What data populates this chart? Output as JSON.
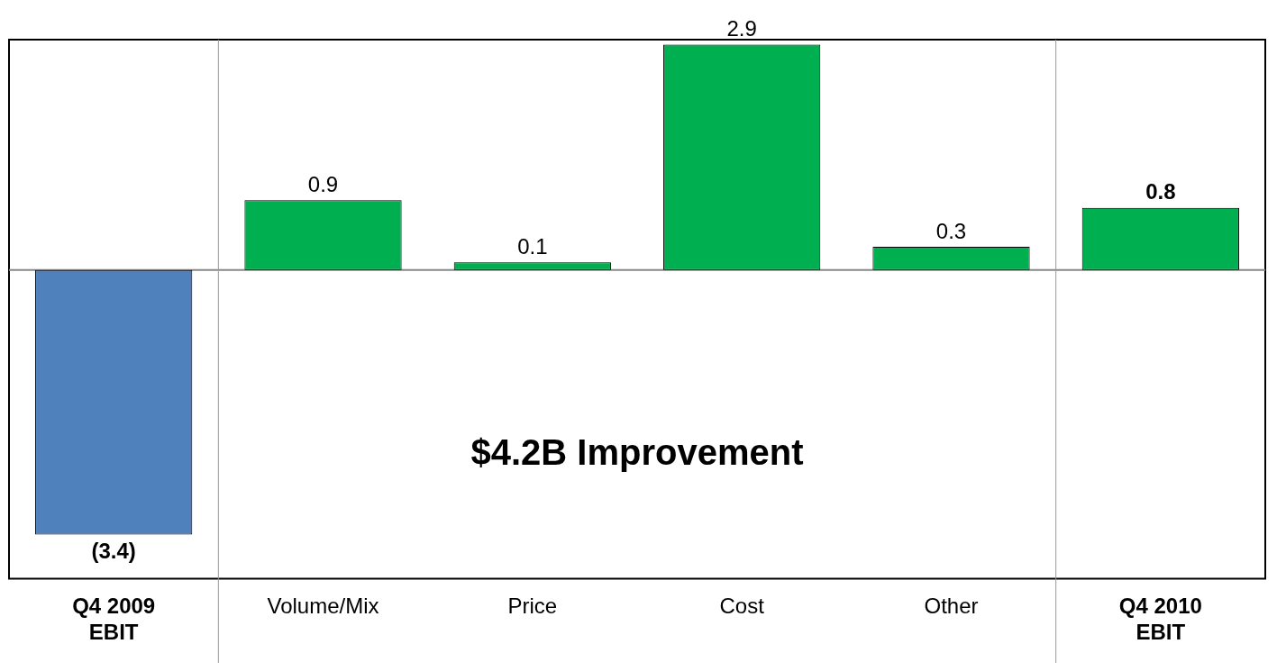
{
  "chart_data": {
    "type": "bar",
    "categories": [
      "Q4 2009 EBIT",
      "Volume/Mix",
      "Price",
      "Cost",
      "Other",
      "Q4 2010 EBIT"
    ],
    "values": [
      -3.4,
      0.9,
      0.1,
      2.9,
      0.3,
      0.8
    ],
    "colors": [
      "#4f81bd",
      "#00b050",
      "#00b050",
      "#00b050",
      "#00b050",
      "#00b050"
    ],
    "value_labels": [
      "(3.4)",
      "0.9",
      "0.1",
      "2.9",
      "0.3",
      "0.8"
    ],
    "annotations": [
      "$4.2B Improvement"
    ],
    "tick_labels": "x",
    "grid": false,
    "legend": false
  }
}
